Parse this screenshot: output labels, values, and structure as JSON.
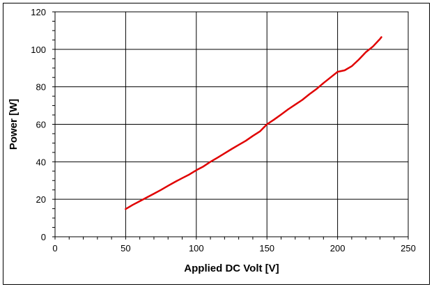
{
  "chart_data": {
    "type": "line",
    "xlabel": "Applied DC Volt [V]",
    "ylabel": "Power [W]",
    "xlim": [
      0,
      250
    ],
    "ylim": [
      0,
      120
    ],
    "x_ticks": [
      0,
      50,
      100,
      150,
      200,
      250
    ],
    "y_ticks": [
      0,
      20,
      40,
      60,
      80,
      100,
      120
    ],
    "grid": true,
    "legend": "none",
    "series": [
      {
        "color": "#e00000",
        "x": [
          50,
          55,
          60,
          65,
          70,
          75,
          80,
          85,
          90,
          95,
          100,
          105,
          110,
          115,
          120,
          125,
          130,
          135,
          140,
          145,
          150,
          155,
          160,
          165,
          170,
          175,
          180,
          185,
          190,
          195,
          200,
          205,
          210,
          215,
          220,
          225,
          230,
          231
        ],
        "values": [
          14.8,
          17.0,
          19.0,
          21.0,
          23.0,
          25.0,
          27.2,
          29.3,
          31.3,
          33.2,
          35.5,
          37.5,
          40.0,
          42.2,
          44.5,
          46.8,
          49.0,
          51.2,
          53.8,
          56.2,
          60.0,
          62.5,
          65.2,
          68.0,
          70.5,
          73.0,
          76.0,
          78.8,
          82.0,
          85.0,
          88.0,
          88.8,
          91.0,
          94.5,
          98.5,
          101.5,
          105.5,
          106.5
        ]
      }
    ]
  }
}
